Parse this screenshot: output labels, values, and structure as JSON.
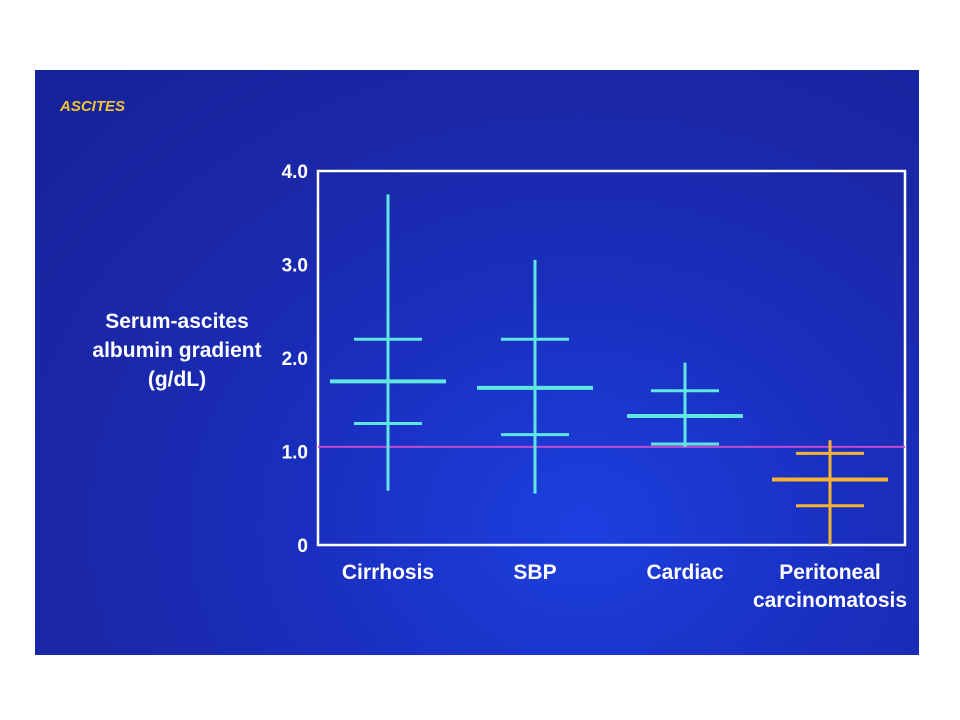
{
  "slide": {
    "title": "ASCITES"
  },
  "chart_data": {
    "type": "range",
    "title": "",
    "ylabel_lines": [
      "Serum-ascites",
      "albumin gradient",
      "(g/dL)"
    ],
    "ylim": [
      0,
      4.0
    ],
    "yticks": [
      {
        "value": 0,
        "label": "0"
      },
      {
        "value": 1.0,
        "label": "1.0"
      },
      {
        "value": 2.0,
        "label": "2.0"
      },
      {
        "value": 3.0,
        "label": "3.0"
      },
      {
        "value": 4.0,
        "label": "4.0"
      }
    ],
    "threshold": {
      "value": 1.05,
      "color": "#c04bd0"
    },
    "categories": [
      {
        "label_lines": [
          "Cirrhosis"
        ],
        "min": 0.58,
        "max": 3.75,
        "low": 1.3,
        "mean": 1.75,
        "high": 2.2,
        "color": "#5ee6e0"
      },
      {
        "label_lines": [
          "SBP"
        ],
        "min": 0.55,
        "max": 3.05,
        "low": 1.18,
        "mean": 1.68,
        "high": 2.2,
        "color": "#5ee6e0"
      },
      {
        "label_lines": [
          "Cardiac"
        ],
        "min": 1.05,
        "max": 1.95,
        "low": 1.08,
        "mean": 1.38,
        "high": 1.65,
        "color": "#5ee6e0"
      },
      {
        "label_lines": [
          "Peritoneal",
          "carcinomatosis"
        ],
        "min": 0.0,
        "max": 1.12,
        "low": 0.42,
        "mean": 0.7,
        "high": 0.98,
        "color": "#f4b431"
      }
    ]
  }
}
